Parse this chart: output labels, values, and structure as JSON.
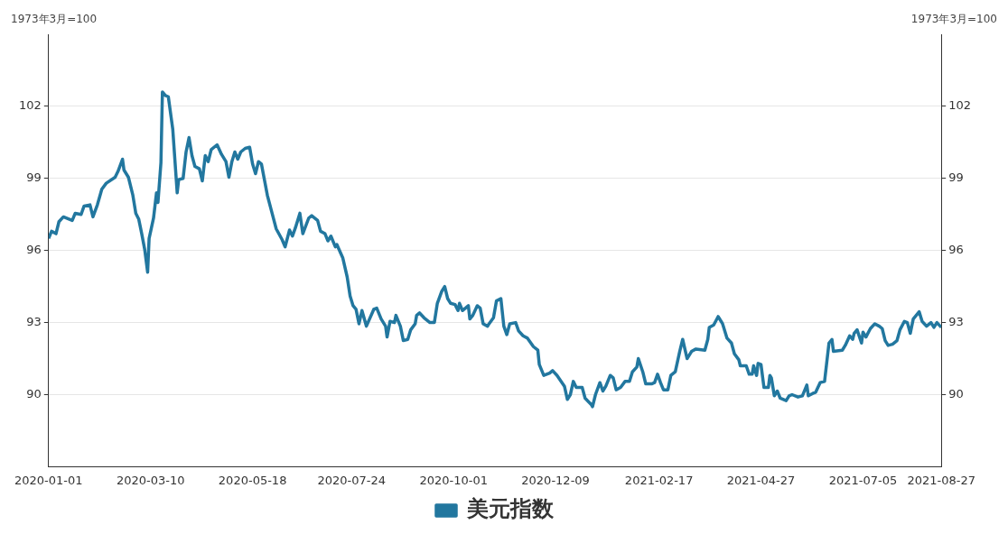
{
  "chart_data": {
    "type": "line",
    "ylabel": "1973年3月=100",
    "y2label": "1973年3月=100",
    "xlim": [
      "2020-01-01",
      "2021-08-27"
    ],
    "xticks": [
      "2020-01-01",
      "2020-03-10",
      "2020-05-18",
      "2020-07-24",
      "2020-10-01",
      "2020-12-09",
      "2021-02-17",
      "2021-04-27",
      "2021-07-05",
      "2021-08-27"
    ],
    "ylim": [
      87,
      105
    ],
    "yticks": [
      90,
      93,
      96,
      99,
      102
    ],
    "y2lim": [
      87,
      105
    ],
    "y2ticks": [
      90,
      93,
      96,
      99,
      102
    ],
    "grid": "y",
    "legend": "bottom",
    "marker": "none",
    "line_style": "solid",
    "series": [
      {
        "name": "美元指数",
        "color": "#22779f",
        "axis": "y",
        "x": [
          "2020-01-01",
          "2020-01-03",
          "2020-01-06",
          "2020-01-08",
          "2020-01-11",
          "2020-01-17",
          "2020-01-19",
          "2020-01-23",
          "2020-01-25",
          "2020-01-29",
          "2020-01-31",
          "2020-02-03",
          "2020-02-06",
          "2020-02-09",
          "2020-02-15",
          "2020-02-17",
          "2020-02-20",
          "2020-02-21",
          "2020-02-24",
          "2020-02-27",
          "2020-02-29",
          "2020-03-02",
          "2020-03-04",
          "2020-03-06",
          "2020-03-08",
          "2020-03-09",
          "2020-03-12",
          "2020-03-14",
          "2020-03-15",
          "2020-03-17",
          "2020-03-18",
          "2020-03-20",
          "2020-03-22",
          "2020-03-25",
          "2020-03-28",
          "2020-03-29",
          "2020-04-01",
          "2020-04-03",
          "2020-04-05",
          "2020-04-07",
          "2020-04-09",
          "2020-04-12",
          "2020-04-14",
          "2020-04-16",
          "2020-04-18",
          "2020-04-20",
          "2020-04-24",
          "2020-04-27",
          "2020-04-30",
          "2020-05-02",
          "2020-05-04",
          "2020-05-06",
          "2020-05-08",
          "2020-05-10",
          "2020-05-13",
          "2020-05-16",
          "2020-05-18",
          "2020-05-20",
          "2020-05-22",
          "2020-05-24",
          "2020-05-26",
          "2020-05-28",
          "2020-05-31",
          "2020-06-03",
          "2020-06-07",
          "2020-06-09",
          "2020-06-12",
          "2020-06-14",
          "2020-06-16",
          "2020-06-19",
          "2020-06-21",
          "2020-06-25",
          "2020-06-27",
          "2020-07-01",
          "2020-07-03",
          "2020-07-06",
          "2020-07-08",
          "2020-07-10",
          "2020-07-13",
          "2020-07-14",
          "2020-07-18",
          "2020-07-21",
          "2020-07-23",
          "2020-07-25",
          "2020-07-27",
          "2020-07-29",
          "2020-07-31",
          "2020-08-03",
          "2020-08-08",
          "2020-08-10",
          "2020-08-13",
          "2020-08-16",
          "2020-08-17",
          "2020-08-19",
          "2020-08-22",
          "2020-08-23",
          "2020-08-26",
          "2020-08-28",
          "2020-08-31",
          "2020-09-02",
          "2020-09-05",
          "2020-09-06",
          "2020-09-08",
          "2020-09-11",
          "2020-09-15",
          "2020-09-18",
          "2020-09-20",
          "2020-09-23",
          "2020-09-25",
          "2020-09-27",
          "2020-09-29",
          "2020-10-02",
          "2020-10-04",
          "2020-10-05",
          "2020-10-07",
          "2020-10-11",
          "2020-10-12",
          "2020-10-14",
          "2020-10-17",
          "2020-10-19",
          "2020-10-21",
          "2020-10-24",
          "2020-10-25",
          "2020-10-28",
          "2020-10-30",
          "2020-11-02",
          "2020-11-04",
          "2020-11-06",
          "2020-11-08",
          "2020-11-12",
          "2020-11-14",
          "2020-11-17",
          "2020-11-20",
          "2020-11-24",
          "2020-11-27",
          "2020-11-28",
          "2020-12-01",
          "2020-12-05",
          "2020-12-07",
          "2020-12-10",
          "2020-12-15",
          "2020-12-17",
          "2020-12-19",
          "2020-12-21",
          "2020-12-23",
          "2020-12-27",
          "2020-12-29",
          "2021-01-02",
          "2021-01-03",
          "2021-01-05",
          "2021-01-08",
          "2021-01-10",
          "2021-01-12",
          "2021-01-15",
          "2021-01-17",
          "2021-01-19",
          "2021-01-22",
          "2021-01-25",
          "2021-01-28",
          "2021-01-30",
          "2021-02-02",
          "2021-02-03",
          "2021-02-06",
          "2021-02-08",
          "2021-02-12",
          "2021-02-14",
          "2021-02-16",
          "2021-02-18",
          "2021-02-20",
          "2021-02-23",
          "2021-02-25",
          "2021-02-28",
          "2021-03-03",
          "2021-03-05",
          "2021-03-08",
          "2021-03-11",
          "2021-03-14",
          "2021-03-20",
          "2021-03-22",
          "2021-03-23",
          "2021-03-26",
          "2021-03-29",
          "2021-03-31",
          "2021-04-01",
          "2021-04-04",
          "2021-04-07",
          "2021-04-09",
          "2021-04-12",
          "2021-04-13",
          "2021-04-17",
          "2021-04-19",
          "2021-04-21",
          "2021-04-22",
          "2021-04-24",
          "2021-04-25",
          "2021-04-27",
          "2021-04-29",
          "2021-05-02",
          "2021-05-03",
          "2021-05-04",
          "2021-05-06",
          "2021-05-08",
          "2021-05-10",
          "2021-05-14",
          "2021-05-16",
          "2021-05-18",
          "2021-05-22",
          "2021-05-25",
          "2021-05-28",
          "2021-05-29",
          "2021-06-01",
          "2021-06-03",
          "2021-06-06",
          "2021-06-09",
          "2021-06-12",
          "2021-06-14",
          "2021-06-15",
          "2021-06-21",
          "2021-06-23",
          "2021-06-26",
          "2021-06-28",
          "2021-06-29",
          "2021-07-01",
          "2021-07-04",
          "2021-07-05",
          "2021-07-07",
          "2021-07-10",
          "2021-07-13",
          "2021-07-16",
          "2021-07-18",
          "2021-07-20",
          "2021-07-22",
          "2021-07-25",
          "2021-07-28",
          "2021-07-30",
          "2021-08-02",
          "2021-08-04",
          "2021-08-06",
          "2021-08-08",
          "2021-08-12",
          "2021-08-14",
          "2021-08-17",
          "2021-08-20",
          "2021-08-22",
          "2021-08-24",
          "2021-08-27"
        ],
        "values": [
          96.5,
          96.8,
          96.7,
          97.2,
          97.4,
          97.25,
          97.55,
          97.5,
          97.85,
          97.9,
          97.4,
          97.9,
          98.55,
          98.8,
          99.05,
          99.3,
          99.8,
          99.35,
          99.05,
          98.3,
          97.55,
          97.3,
          96.7,
          96.05,
          95.1,
          96.5,
          97.35,
          98.4,
          98.0,
          99.65,
          102.6,
          102.45,
          102.4,
          101.05,
          98.4,
          98.95,
          99.0,
          100.1,
          100.7,
          99.95,
          99.5,
          99.4,
          98.9,
          99.95,
          99.7,
          100.2,
          100.4,
          100.0,
          99.7,
          99.05,
          99.7,
          100.1,
          99.8,
          100.1,
          100.25,
          100.3,
          99.6,
          99.2,
          99.7,
          99.6,
          98.95,
          98.3,
          97.6,
          96.9,
          96.45,
          96.15,
          96.85,
          96.6,
          96.95,
          97.55,
          96.7,
          97.35,
          97.45,
          97.25,
          96.8,
          96.7,
          96.4,
          96.6,
          96.15,
          96.25,
          95.7,
          94.9,
          94.1,
          93.7,
          93.55,
          92.95,
          93.5,
          92.85,
          93.55,
          93.6,
          93.15,
          92.85,
          92.4,
          93.05,
          93.0,
          93.3,
          92.85,
          92.25,
          92.3,
          92.7,
          92.95,
          93.3,
          93.4,
          93.2,
          93.0,
          93.0,
          93.8,
          94.3,
          94.5,
          94.0,
          93.8,
          93.75,
          93.5,
          93.8,
          93.5,
          93.7,
          93.15,
          93.3,
          93.7,
          93.6,
          92.95,
          92.85,
          92.95,
          93.2,
          93.9,
          94.0,
          92.85,
          92.5,
          92.95,
          93.0,
          92.65,
          92.45,
          92.35,
          92.0,
          91.85,
          91.25,
          90.8,
          90.9,
          91.0,
          90.8,
          90.35,
          89.8,
          90.0,
          90.55,
          90.3,
          90.3,
          89.85,
          89.6,
          89.5,
          90.0,
          90.5,
          90.15,
          90.35,
          90.8,
          90.7,
          90.2,
          90.3,
          90.55,
          90.55,
          90.95,
          91.15,
          91.5,
          90.95,
          90.45,
          90.45,
          90.5,
          90.85,
          90.5,
          90.2,
          90.2,
          90.8,
          90.95,
          91.8,
          92.3,
          91.5,
          91.8,
          91.9,
          91.85,
          92.3,
          92.8,
          92.9,
          93.25,
          93.05,
          92.95,
          92.35,
          92.15,
          91.7,
          91.45,
          91.2,
          91.2,
          90.85,
          90.85,
          91.2,
          90.8,
          91.3,
          91.25,
          90.3,
          90.3,
          90.8,
          90.7,
          89.95,
          90.15,
          89.85,
          89.75,
          89.95,
          90.0,
          89.9,
          89.95,
          90.4,
          89.95,
          90.05,
          90.1,
          90.5,
          90.55,
          92.15,
          92.3,
          91.8,
          91.85,
          92.05,
          92.45,
          92.3,
          92.55,
          92.7,
          92.15,
          92.6,
          92.4,
          92.75,
          92.95,
          92.85,
          92.75,
          92.25,
          92.05,
          92.1,
          92.25,
          92.7,
          93.05,
          93.0,
          92.55,
          93.15,
          93.45,
          93.05,
          92.85,
          93.0,
          92.8,
          93.0,
          92.8
        ]
      }
    ]
  }
}
